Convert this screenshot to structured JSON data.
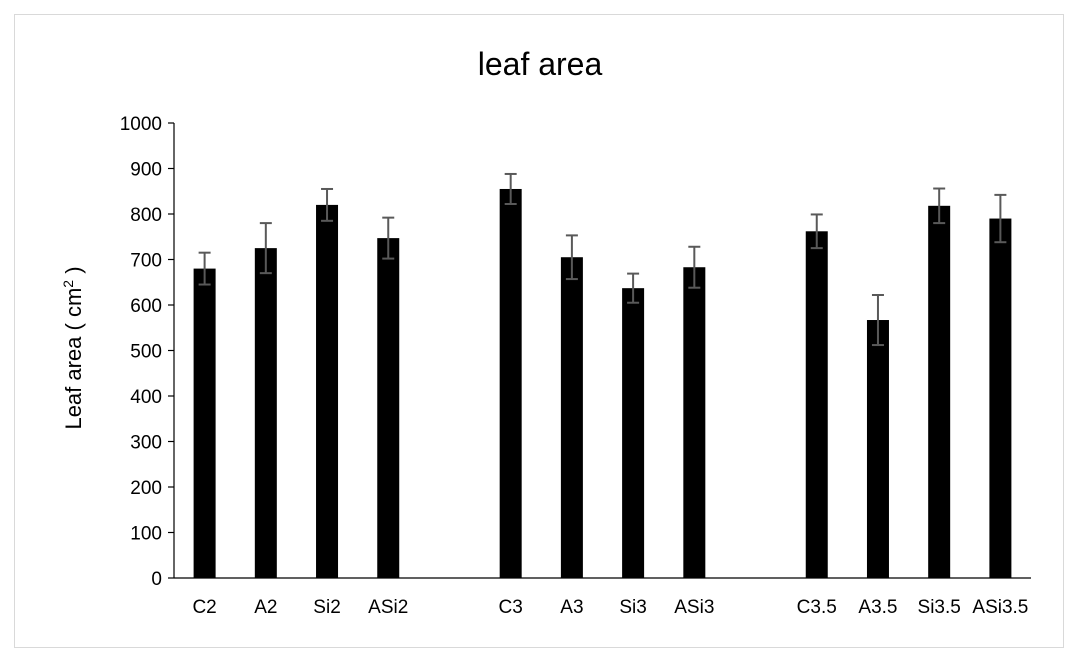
{
  "chart_data": {
    "type": "bar",
    "title": "leaf area",
    "xlabel": "",
    "ylabel": "Leaf area ( cm",
    "ylabel_sup": "2",
    "ylabel_tail": " )",
    "ylim": [
      0,
      1000
    ],
    "ytick_step": 100,
    "grid": false,
    "legend": "none",
    "bar_color": "#000000",
    "error_bar_color": "#595959",
    "groups": [
      {
        "categories": [
          "C2",
          "A2",
          "Si2",
          "ASi2"
        ],
        "values": [
          680,
          725,
          820,
          747
        ],
        "errors": [
          35,
          55,
          35,
          45
        ]
      },
      {
        "categories": [
          "C3",
          "A3",
          "Si3",
          "ASi3"
        ],
        "values": [
          855,
          705,
          637,
          683
        ],
        "errors": [
          33,
          48,
          32,
          45
        ]
      },
      {
        "categories": [
          "C3.5",
          "A3.5",
          "Si3.5",
          "ASi3.5"
        ],
        "values": [
          762,
          567,
          818,
          790
        ],
        "errors": [
          37,
          55,
          38,
          52
        ]
      }
    ]
  }
}
